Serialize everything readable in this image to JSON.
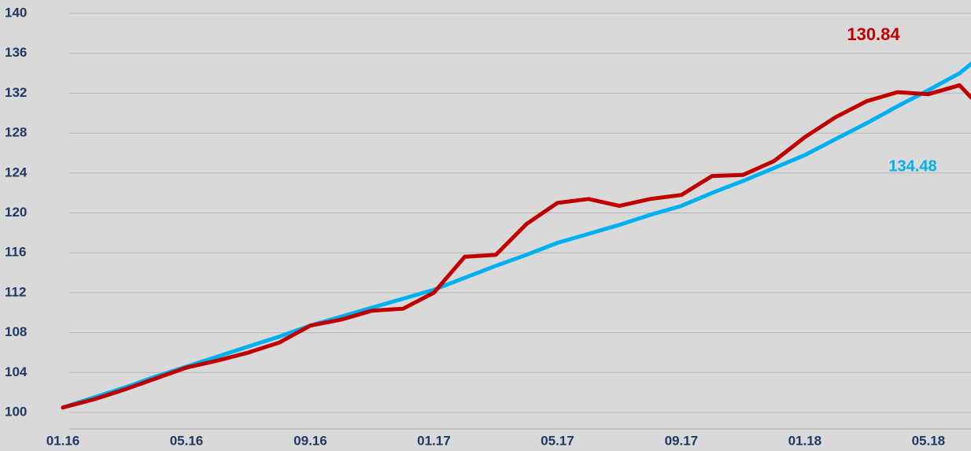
{
  "chart_data": {
    "type": "line",
    "x": [
      2016,
      2016.083,
      2016.167,
      2016.25,
      2016.333,
      2016.417,
      2016.5,
      2016.583,
      2016.667,
      2016.75,
      2016.833,
      2016.917,
      2017,
      2017.083,
      2017.167,
      2017.25,
      2017.333,
      2017.417,
      2017.5,
      2017.583,
      2017.667,
      2017.75,
      2017.833,
      2017.917,
      2018,
      2018.083,
      2018.167,
      2018.25,
      2018.333,
      2018.417,
      2018.45
    ],
    "series": [
      {
        "color": "#c00000",
        "values": [
          100.5,
          101.3,
          102.3,
          103.4,
          104.5,
          105.2,
          106.0,
          107.0,
          108.7,
          109.3,
          110.2,
          110.4,
          112.0,
          115.6,
          115.8,
          118.9,
          121.0,
          121.4,
          120.7,
          121.4,
          121.8,
          123.7,
          123.8,
          125.2,
          127.6,
          129.6,
          131.2,
          132.1,
          131.9,
          132.8,
          131.5
        ]
      },
      {
        "color": "#00b0f0",
        "values": [
          100.5,
          101.5,
          102.5,
          103.6,
          104.6,
          105.6,
          106.6,
          107.6,
          108.7,
          109.6,
          110.5,
          111.4,
          112.3,
          113.5,
          114.7,
          115.8,
          117.0,
          117.9,
          118.8,
          119.8,
          120.7,
          122.0,
          123.2,
          124.5,
          125.8,
          127.4,
          129.0,
          130.7,
          132.3,
          134.0,
          135.0
        ]
      }
    ],
    "annotations": [
      "130.84",
      "134.48"
    ],
    "xlim": [
      2016,
      2018.45
    ],
    "xticks": [
      {
        "value": 2016,
        "label": "01.16"
      },
      {
        "value": 2016.333,
        "label": "05.16"
      },
      {
        "value": 2016.667,
        "label": "09.16"
      },
      {
        "value": 2017,
        "label": "01.17"
      },
      {
        "value": 2017.333,
        "label": "05.17"
      },
      {
        "value": 2017.667,
        "label": "09.17"
      },
      {
        "value": 2018,
        "label": "01.18"
      },
      {
        "value": 2018.333,
        "label": "05.18"
      }
    ],
    "ylim": [
      100,
      140
    ],
    "yticks": [
      100,
      104,
      108,
      112,
      116,
      120,
      124,
      128,
      132,
      136,
      140
    ],
    "grid": true
  }
}
